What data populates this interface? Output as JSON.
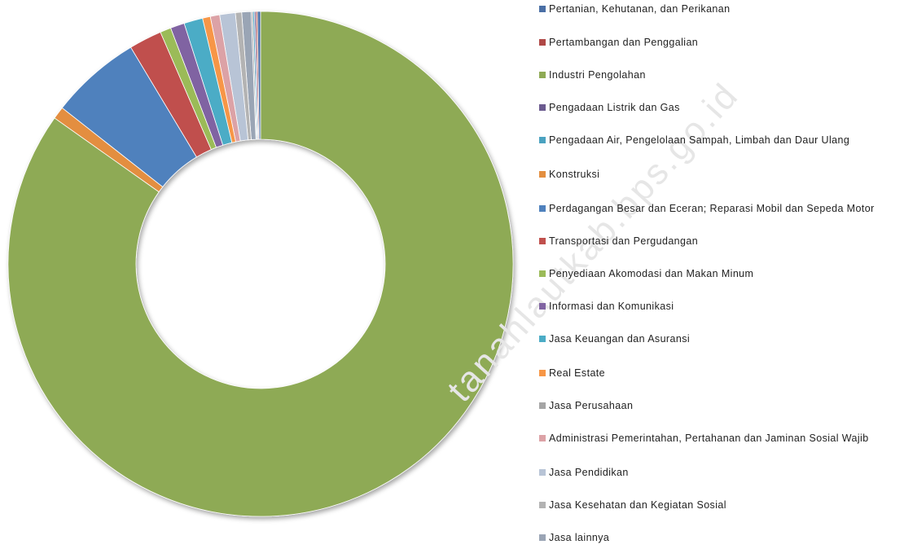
{
  "chart_data": {
    "type": "pie",
    "variant": "doughnut",
    "title": "",
    "legend_position": "right",
    "categories": [
      "Pertanian, Kehutanan, dan Perikanan",
      "Pertambangan dan Penggalian",
      "Industri Pengolahan",
      "Pengadaan Listrik dan Gas",
      "Pengadaan Air, Pengelolaan Sampah, Limbah dan Daur Ulang",
      "Konstruksi",
      "Perdagangan Besar dan Eceran; Reparasi Mobil dan Sepeda Motor",
      "Transportasi dan Pergudangan",
      "Penyediaan Akomodasi dan Makan Minum",
      "Informasi dan Komunikasi",
      "Jasa Keuangan dan Asuransi",
      "Real Estate",
      "Jasa Perusahaan",
      "Administrasi Pemerintahan, Pertahanan dan Jaminan Sosial Wajib",
      "Jasa Pendidikan",
      "Jasa Kesehatan dan Kegiatan Sosial",
      "Jasa lainnya"
    ],
    "values": [
      0.2,
      0.1,
      84.8,
      0.1,
      0.1,
      0.8,
      5.8,
      2.1,
      0.7,
      0.9,
      1.2,
      0.5,
      0.1,
      0.6,
      1.0,
      0.4,
      0.6
    ],
    "colors": [
      "#4a6fa5",
      "#b04846",
      "#8eaa54",
      "#6b5a8f",
      "#4aa2c0",
      "#e38e3f",
      "#4f81bd",
      "#c0504d",
      "#9bbb59",
      "#8064a2",
      "#4bacc6",
      "#f79646",
      "#a5a5a5",
      "#dca2a6",
      "#b8c4d6",
      "#b3b3b3",
      "#9aa5b5"
    ]
  },
  "watermark": "tanahlautkab.bps.go.id"
}
